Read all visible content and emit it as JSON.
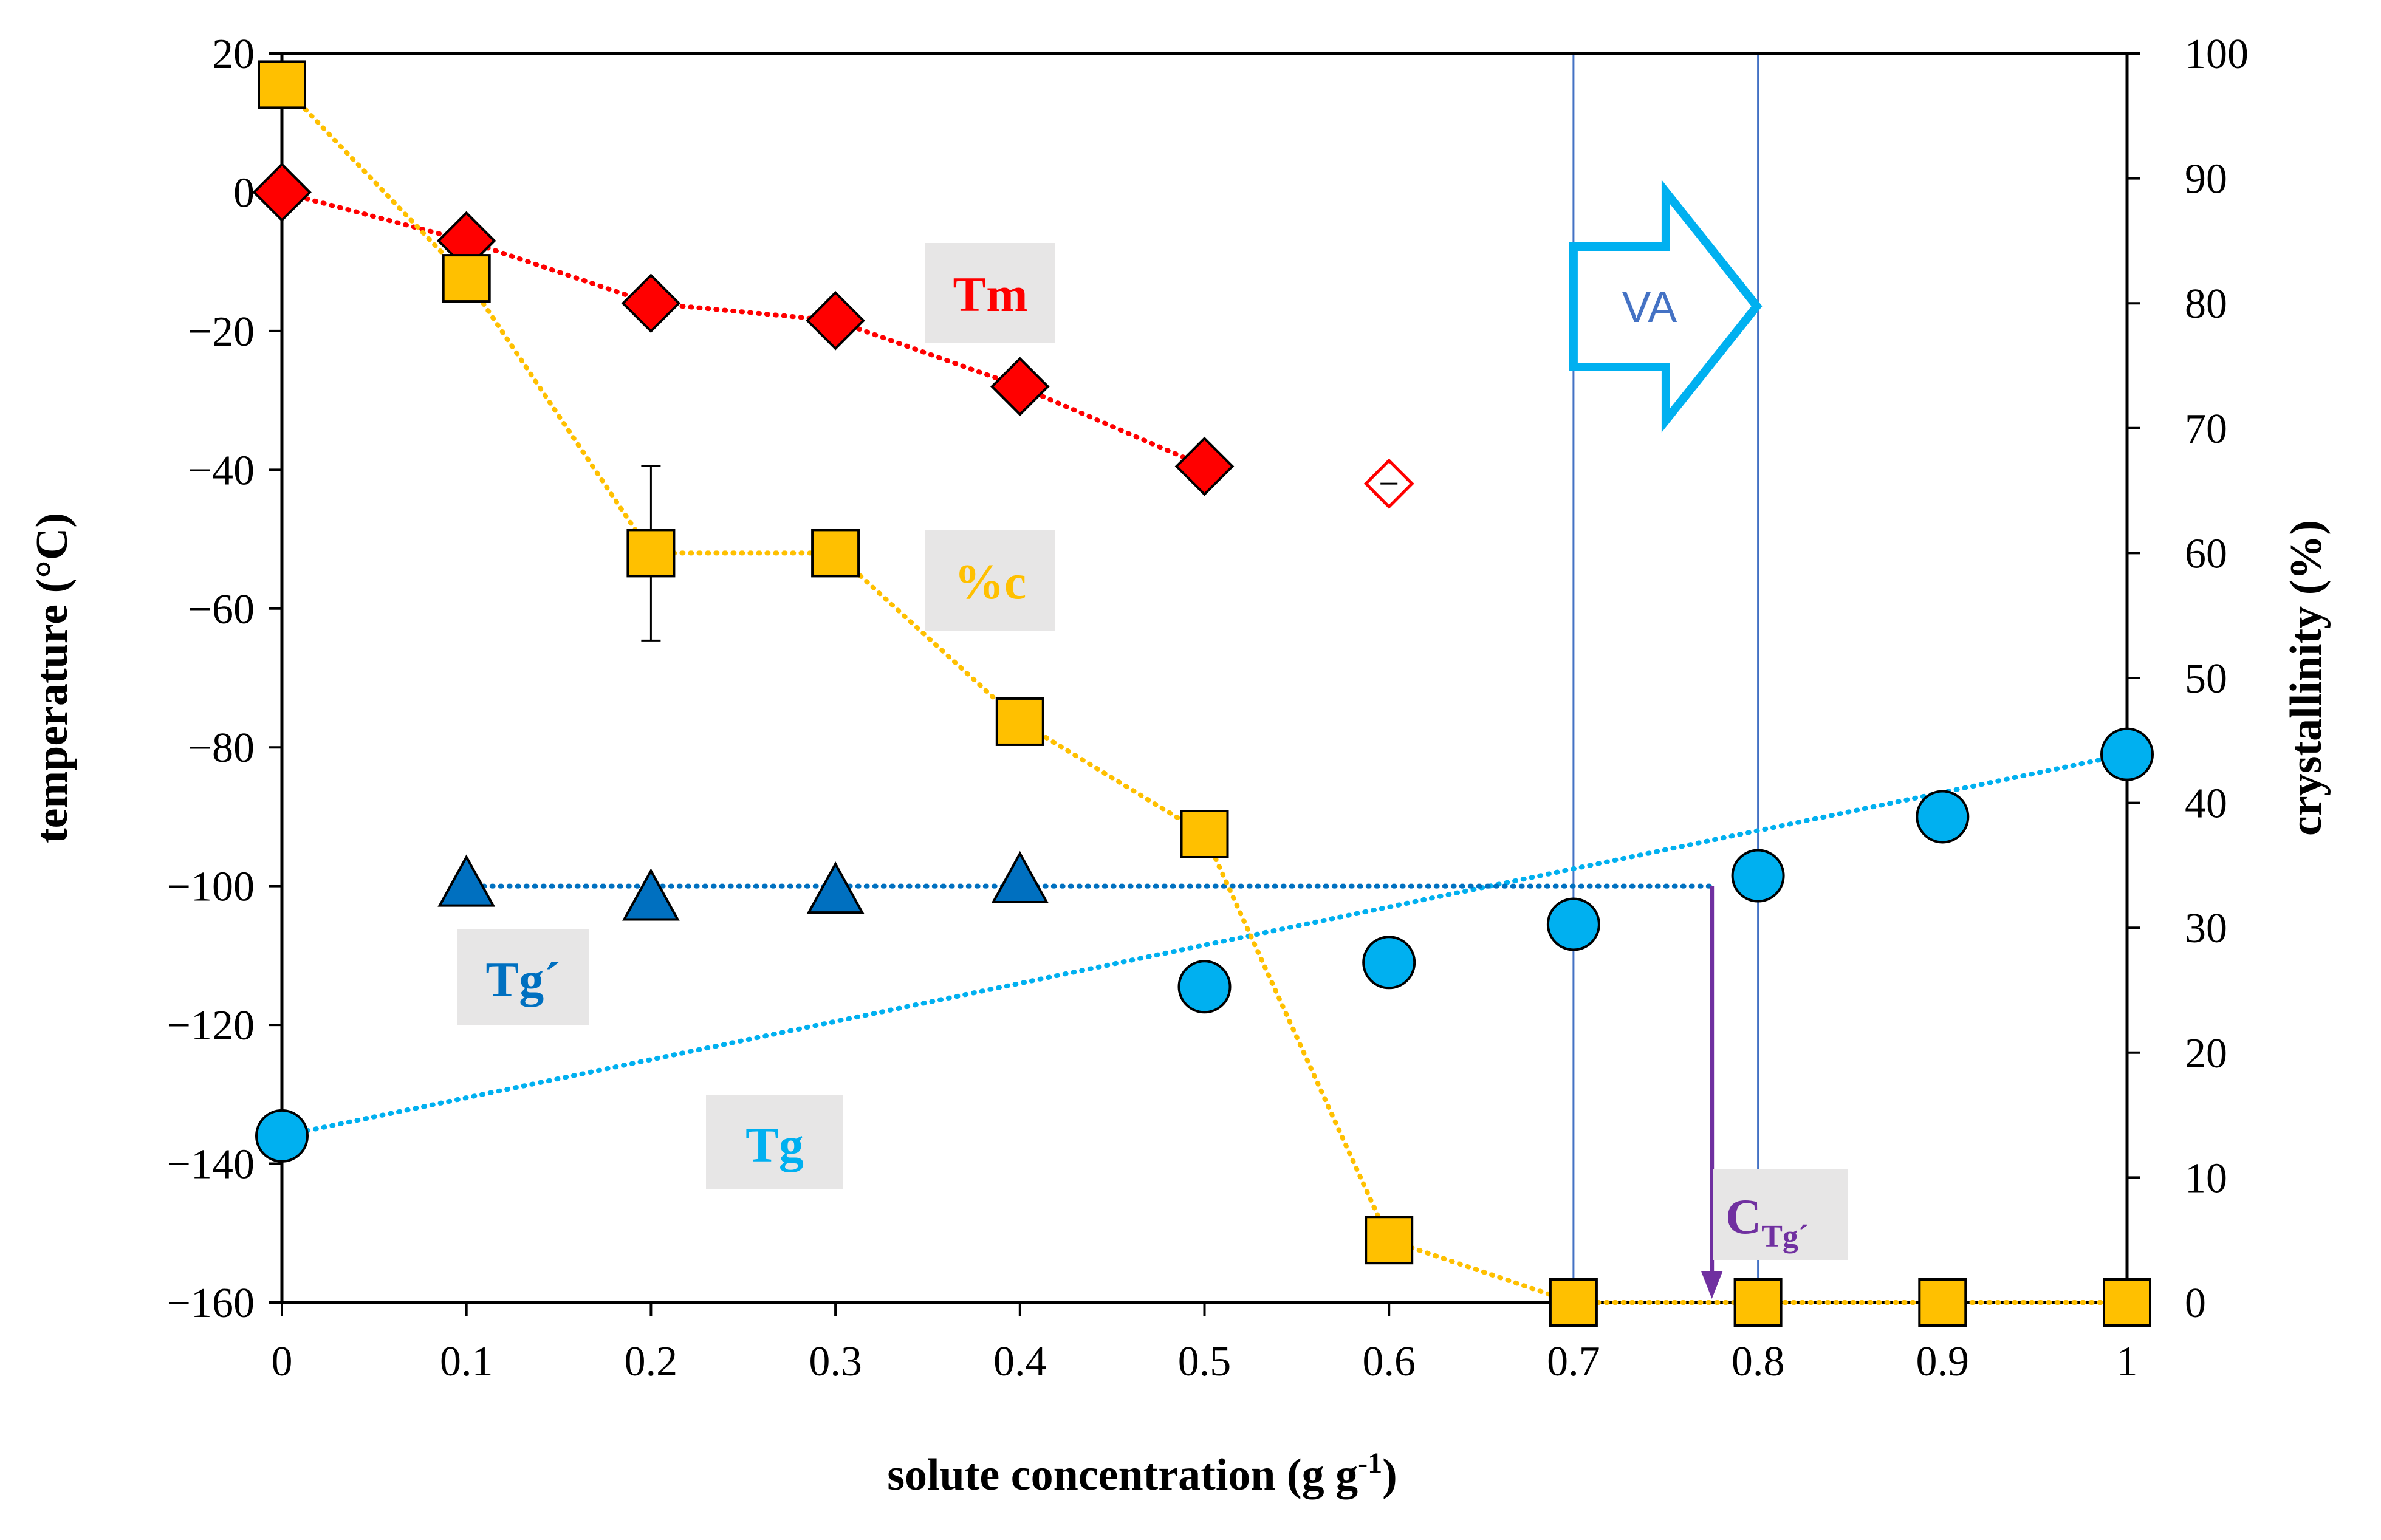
{
  "chart_data": {
    "type": "scatter",
    "xlabel": "solute concentration (g g",
    "xlabel_sup": "-1",
    "xlabel_end": ")",
    "ylabel_left": "temperature (°C)",
    "ylabel_right": "crystallinity (%)",
    "xlim": [
      0,
      1
    ],
    "ylim_left": [
      -160,
      20
    ],
    "ylim_right": [
      0,
      100
    ],
    "grid": false,
    "x_ticks": [
      "0",
      "0.1",
      "0.2",
      "0.3",
      "0.4",
      "0.5",
      "0.6",
      "0.7",
      "0.8",
      "0.9",
      "1"
    ],
    "y_left_ticks": [
      "20",
      "0",
      "−20",
      "−40",
      "−60",
      "−80",
      "−100",
      "−120",
      "−140",
      "−160"
    ],
    "y_right_ticks": [
      "100",
      "90",
      "80",
      "70",
      "60",
      "50",
      "40",
      "30",
      "20",
      "10",
      "0"
    ],
    "series": [
      {
        "name": "Tm",
        "axis": "left",
        "marker": "diamond",
        "color": "#ff0000",
        "x": [
          0,
          0.1,
          0.2,
          0.3,
          0.4,
          0.5
        ],
        "y": [
          0,
          -7,
          -16,
          -18.5,
          -28,
          -39.5
        ],
        "open_point": {
          "x": 0.6,
          "y": -42,
          "err": 0.5
        }
      },
      {
        "name": "%c",
        "axis": "right",
        "marker": "square",
        "color": "#ffc000",
        "x": [
          0,
          0.1,
          0.2,
          0.3,
          0.4,
          0.5,
          0.6,
          0.7,
          0.8,
          0.9,
          1.0
        ],
        "y": [
          97.5,
          82,
          60,
          60,
          46.5,
          37.5,
          5,
          0,
          0,
          0,
          0
        ],
        "err": [
          0,
          0,
          7,
          0,
          0,
          0,
          1.5,
          0,
          0,
          0,
          0
        ]
      },
      {
        "name": "Tg´",
        "axis": "left",
        "marker": "triangle",
        "color": "#0070c0",
        "x": [
          0.1,
          0.2,
          0.3,
          0.4
        ],
        "y": [
          -100,
          -102,
          -101,
          -99.5
        ],
        "fit": {
          "x": [
            0.1,
            0.775
          ],
          "y": [
            -100,
            -100
          ]
        }
      },
      {
        "name": "Tg",
        "axis": "left",
        "marker": "circle",
        "color": "#00b0f0",
        "x": [
          0,
          0.5,
          0.6,
          0.7,
          0.8,
          0.9,
          1.0
        ],
        "y": [
          -136,
          -114.5,
          -111,
          -105.5,
          -98.5,
          -90,
          -81
        ],
        "err": [
          3,
          0,
          0,
          0,
          0,
          0,
          0
        ],
        "fit": {
          "x": [
            0,
            1.0
          ],
          "y": [
            -136,
            -81
          ]
        }
      }
    ],
    "annotations": {
      "tm_label": "Tm",
      "c_label": "%c",
      "tgp_label": "Tg´",
      "tg_label": "Tg",
      "va_label": "VA",
      "va_lines_x": [
        0.7,
        0.8
      ],
      "ctg_label": "C",
      "ctg_sub": "Tg´",
      "ctg_x": 0.775
    },
    "colors": {
      "tm": "#ff0000",
      "crystallinity": "#ffc000",
      "tg_prime": "#0070c0",
      "tg": "#00b0f0",
      "ctg": "#7030a0",
      "va_arrow": "#00b0f0",
      "va_lines": "#4472c4",
      "label_box": "#e7e6e6"
    }
  }
}
